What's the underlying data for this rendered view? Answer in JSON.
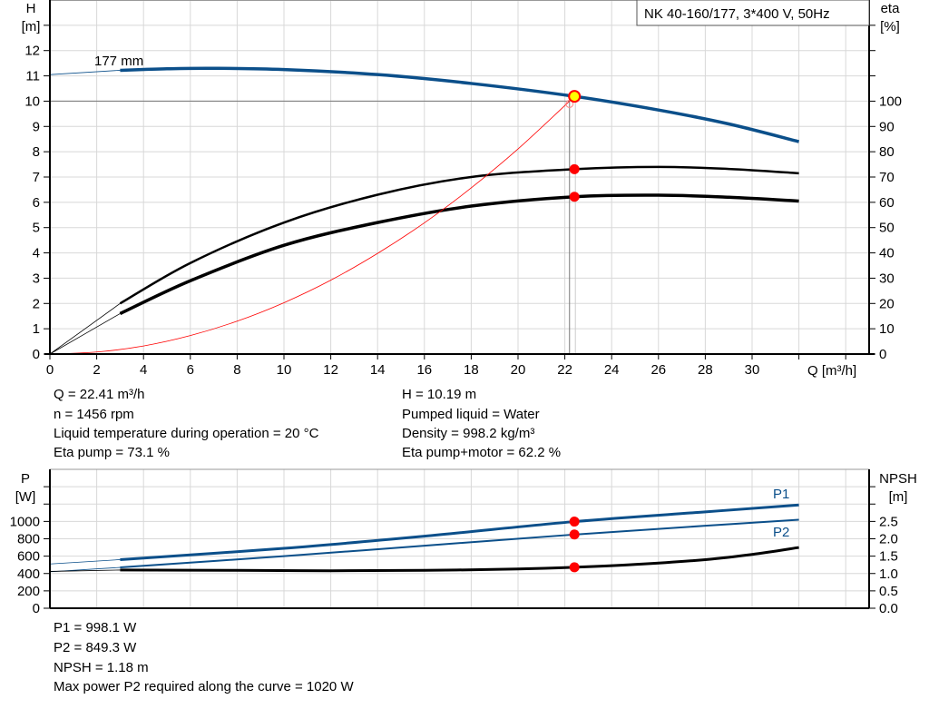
{
  "chart_data": [
    {
      "type": "line",
      "title": "NK 40-160/177, 3*400 V, 50Hz",
      "xlabel": "Q [m³/h]",
      "ylabel": [
        "H",
        "[m]"
      ],
      "y2label": [
        "eta",
        "[%]"
      ],
      "xlim": [
        0,
        35
      ],
      "ylim": [
        0,
        14
      ],
      "y2lim": [
        0,
        140
      ],
      "grid": true,
      "x_ticks": [
        0,
        2,
        4,
        6,
        8,
        10,
        12,
        14,
        16,
        18,
        20,
        22,
        24,
        26,
        28,
        30
      ],
      "y_ticks": [
        0,
        1,
        2,
        3,
        4,
        5,
        6,
        7,
        8,
        9,
        10,
        11,
        12
      ],
      "y2_ticks": [
        0,
        10,
        20,
        30,
        40,
        50,
        60,
        70,
        80,
        90,
        100
      ],
      "curve_label": "177 mm",
      "series": [
        {
          "id": "head",
          "color": "#0b4f8a",
          "axis": "left",
          "x": [
            3,
            5,
            7,
            10,
            14,
            18,
            22.41,
            26,
            29,
            32
          ],
          "y": [
            11.22,
            11.28,
            11.3,
            11.25,
            11.05,
            10.7,
            10.19,
            9.65,
            9.1,
            8.4
          ],
          "extension": {
            "x": [
              0,
              3
            ],
            "y": [
              11.05,
              11.22
            ]
          }
        },
        {
          "id": "eta-pump",
          "color": "#000000",
          "axis": "right",
          "x": [
            3,
            6,
            10,
            14,
            18,
            22.41,
            26,
            29,
            32
          ],
          "y": [
            20,
            36,
            52,
            63,
            70,
            73.1,
            74,
            73.2,
            71.5
          ],
          "extension": {
            "x": [
              0,
              3
            ],
            "y": [
              0,
              20
            ]
          }
        },
        {
          "id": "eta-pump-motor",
          "color": "#000000",
          "axis": "right",
          "x": [
            3,
            6,
            10,
            14,
            18,
            22.41,
            26,
            29,
            32
          ],
          "y": [
            16,
            29,
            43,
            52,
            58.5,
            62.2,
            62.8,
            62,
            60.5
          ],
          "extension": {
            "x": [
              0,
              3
            ],
            "y": [
              0,
              16
            ]
          }
        },
        {
          "id": "system-curve",
          "color": "#ff0000",
          "axis": "left",
          "x": [
            0,
            2,
            4,
            6,
            8,
            10,
            12,
            14,
            16,
            18,
            20,
            22.2
          ],
          "y": [
            0,
            0.08,
            0.32,
            0.73,
            1.3,
            2.03,
            2.92,
            3.98,
            5.19,
            6.57,
            8.11,
            10.0
          ]
        }
      ],
      "operating_point": {
        "Q": 22.41,
        "H": 10.19,
        "eta_pump": 73.1,
        "eta_pump_motor": 62.2
      }
    },
    {
      "type": "line",
      "xlim": [
        0,
        35
      ],
      "ylim": [
        0,
        1600
      ],
      "y2lim": [
        0,
        4
      ],
      "ylabel": [
        "P",
        "[W]"
      ],
      "y2label": [
        "NPSH",
        "[m]"
      ],
      "grid": true,
      "y_ticks": [
        0,
        200,
        400,
        600,
        800,
        1000
      ],
      "y2_ticks": [
        "0.0",
        "0.5",
        "1.0",
        "1.5",
        "2.0",
        "2.5"
      ],
      "series": [
        {
          "name": "P1",
          "color": "#0b4f8a",
          "axis": "left",
          "x": [
            3,
            10,
            16,
            22.41,
            28,
            32
          ],
          "y": [
            560,
            690,
            830,
            998,
            1110,
            1190
          ],
          "extension": {
            "x": [
              0,
              3
            ],
            "y": [
              510,
              560
            ]
          }
        },
        {
          "name": "P2",
          "color": "#0b4f8a",
          "axis": "left",
          "x": [
            3,
            10,
            16,
            22.41,
            28,
            32
          ],
          "y": [
            470,
            600,
            720,
            849,
            950,
            1020
          ],
          "extension": {
            "x": [
              0,
              3
            ],
            "y": [
              420,
              470
            ]
          }
        },
        {
          "id": "npsh",
          "color": "#000000",
          "axis": "right",
          "x": [
            3,
            8,
            12,
            16,
            20,
            22.41,
            25,
            28,
            30,
            32
          ],
          "y": [
            1.1,
            1.09,
            1.08,
            1.09,
            1.13,
            1.18,
            1.26,
            1.4,
            1.55,
            1.75
          ],
          "extension": {
            "x": [
              0,
              3
            ],
            "y": [
              1.06,
              1.1
            ]
          }
        }
      ],
      "operating_point": {
        "Q": 22.41,
        "P1": 998.1,
        "P2": 849.3,
        "NPSH": 1.18
      }
    }
  ],
  "info_top": {
    "q": "Q = 22.41 m³/h",
    "n": "n = 1456 rpm",
    "temp": "Liquid temperature during operation = 20 °C",
    "eta_pump": "Eta pump = 73.1 %",
    "h": "H = 10.19 m",
    "liquid": "Pumped liquid = Water",
    "density": "Density = 998.2 kg/m³",
    "eta_pm": "Eta pump+motor = 62.2 %"
  },
  "info_bottom": {
    "p1": "P1 = 998.1 W",
    "p2": "P2 = 849.3 W",
    "npsh": "NPSH = 1.18 m",
    "max": "Max power P2 required along the curve = 1020 W"
  }
}
